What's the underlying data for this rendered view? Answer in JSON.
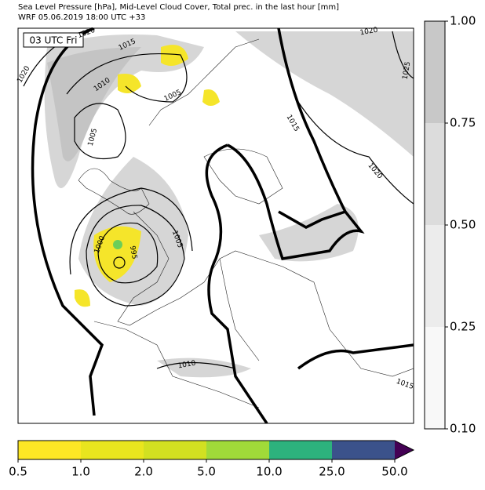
{
  "header": {
    "line1": "Sea Level Pressure [hPa], Mid-Level Cloud Cover, Total prec. in the last hour [mm]",
    "line2": "WRF 05.06.2019 18:00 UTC +33"
  },
  "map": {
    "time_label": "03 UTC Fri",
    "contour_labels": [
      "1020",
      "1020",
      "1015",
      "1010",
      "1005",
      "1005",
      "1000",
      "995",
      "1005",
      "1015",
      "1020",
      "1025",
      "1020",
      "1010",
      "1015"
    ]
  },
  "cloud_colorbar": {
    "ticks": [
      "1.00",
      "0.75",
      "0.50",
      "0.25",
      "0.10"
    ]
  },
  "precip_colorbar": {
    "ticks": [
      "0.5",
      "1.0",
      "2.0",
      "5.0",
      "10.0",
      "25.0",
      "50.0"
    ]
  }
}
